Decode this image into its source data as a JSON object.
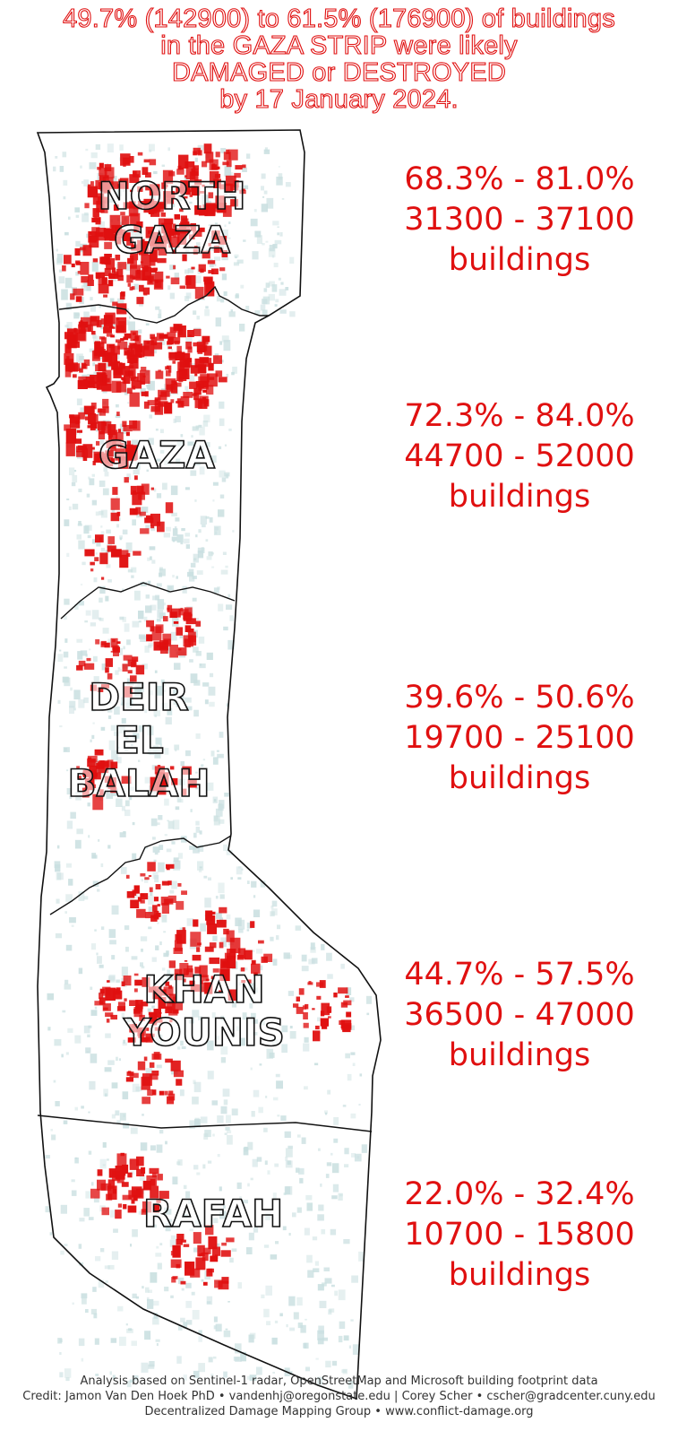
{
  "title": {
    "line1": "49.7% (142900) to 61.5% (176900) of buildings",
    "line2": "in the GAZA STRIP were likely",
    "line3": "DAMAGED or DESTROYED",
    "line4": "by 17 January 2024."
  },
  "regions": [
    {
      "id": "north-gaza",
      "label_lines": [
        "NORTH",
        "GAZA"
      ],
      "range_pct": "68.3% - 81.0%",
      "range_buildings": "31300 - 37100",
      "unit": "buildings"
    },
    {
      "id": "gaza",
      "label_lines": [
        "GAZA"
      ],
      "range_pct": "72.3% - 84.0%",
      "range_buildings": "44700 - 52000",
      "unit": "buildings"
    },
    {
      "id": "deir-el-balah",
      "label_lines": [
        "DEIR",
        "EL",
        "BALAH"
      ],
      "range_pct": "39.6% - 50.6%",
      "range_buildings": "19700 - 25100",
      "unit": "buildings"
    },
    {
      "id": "khan-younis",
      "label_lines": [
        "KHAN",
        "YOUNIS"
      ],
      "range_pct": "44.7% - 57.5%",
      "range_buildings": "36500 - 47000",
      "unit": "buildings"
    },
    {
      "id": "rafah",
      "label_lines": [
        "RAFAH"
      ],
      "range_pct": "22.0% - 32.4%",
      "range_buildings": "10700 - 15800",
      "unit": "buildings"
    }
  ],
  "colors": {
    "damaged": "#e01010",
    "buildings": "#c9dfe0",
    "boundary": "#111111",
    "text_red": "#e01010"
  },
  "footer": {
    "line1": "Analysis based on Sentinel-1 radar, OpenStreetMap and Microsoft building footprint data",
    "line2": "Credit: Jamon Van Den Hoek PhD • vandenhj@oregonstate.edu | Corey Scher • cscher@gradcenter.cuny.edu",
    "line3": "Decentralized Damage Mapping Group • www.conflict-damage.org"
  }
}
